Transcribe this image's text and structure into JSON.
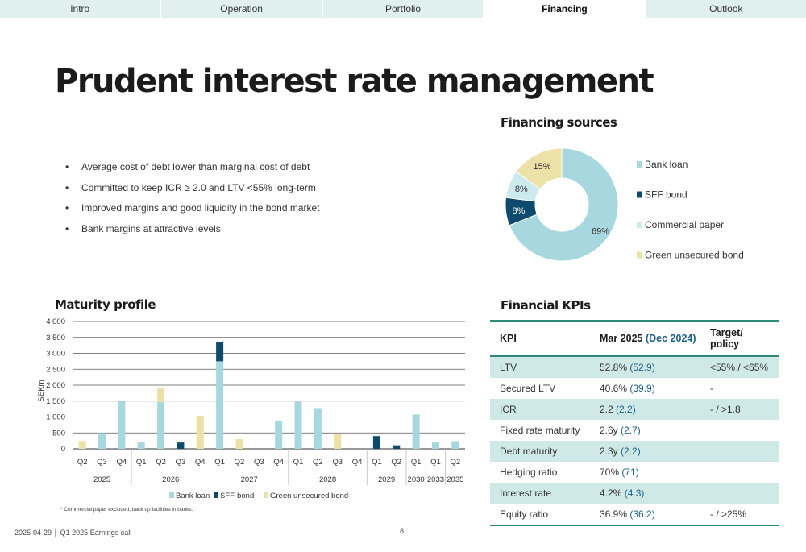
{
  "tabs": [
    "Intro",
    "Operation",
    "Portfolio",
    "Financing",
    "Outlook"
  ],
  "active_tab": 3,
  "title": "Prudent interest rate management",
  "bullets": [
    "Average cost of debt lower than marginal cost of debt",
    "Committed to keep ICR ≥ 2.0 and LTV <55% long-term",
    "Improved margins and good liquidity in the bond market",
    "Bank margins at attractive levels"
  ],
  "colors": {
    "bank_loan": "#a8d8df",
    "sff_bond": "#0d4a6b",
    "commercial_paper": "#cdeaee",
    "green_bond": "#ece2a8",
    "accent": "#2d8a7a"
  },
  "donut": {
    "title": "Financing sources",
    "chart_data": {
      "type": "pie",
      "labels": [
        "Bank loan",
        "SFF bond",
        "Commercial paper",
        "Green unsecured bond"
      ],
      "values": [
        69,
        8,
        8,
        15
      ],
      "value_labels": [
        "69%",
        "8%",
        "8%",
        "15%"
      ]
    }
  },
  "maturity": {
    "title": "Maturity profile",
    "chart_data": {
      "type": "bar",
      "stacked": true,
      "ylabel": "SEKm",
      "ylim": [
        0,
        4000
      ],
      "yticks": [
        "0",
        "500",
        "1 000",
        "1 500",
        "2 000",
        "2 500",
        "3 000",
        "3 500",
        "4 000"
      ],
      "categories": [
        "Q2",
        "Q3",
        "Q4",
        "Q1",
        "Q2",
        "Q3",
        "Q4",
        "Q1",
        "Q2",
        "Q3",
        "Q4",
        "Q1",
        "Q2",
        "Q3",
        "Q4",
        "Q1",
        "Q2",
        "Q1",
        "Q1",
        "Q2"
      ],
      "series": [
        {
          "name": "Bank loan",
          "values": [
            0,
            500,
            1500,
            200,
            1470,
            0,
            0,
            2750,
            0,
            0,
            890,
            1480,
            1280,
            0,
            0,
            0,
            0,
            1080,
            200,
            240
          ]
        },
        {
          "name": "SFF-bond",
          "values": [
            0,
            0,
            0,
            0,
            0,
            200,
            0,
            600,
            0,
            0,
            0,
            0,
            0,
            0,
            0,
            400,
            110,
            0,
            0,
            0
          ]
        },
        {
          "name": "Green unsecured bond",
          "values": [
            250,
            0,
            0,
            0,
            430,
            0,
            1040,
            0,
            300,
            0,
            0,
            0,
            0,
            490,
            0,
            0,
            0,
            0,
            0,
            0
          ]
        }
      ],
      "year_groups": [
        {
          "label": "2025",
          "start": 0,
          "end": 2
        },
        {
          "label": "2026",
          "start": 3,
          "end": 6
        },
        {
          "label": "2027",
          "start": 7,
          "end": 10
        },
        {
          "label": "2028",
          "start": 11,
          "end": 14
        },
        {
          "label": "2029",
          "start": 15,
          "end": 16
        },
        {
          "label": "2030",
          "start": 17,
          "end": 17
        },
        {
          "label": "2033",
          "start": 18,
          "end": 18
        },
        {
          "label": "2035",
          "start": 19,
          "end": 19
        }
      ]
    },
    "footnote": "* Commercial paper excluded, back up facilities in banks."
  },
  "kpis": {
    "title": "Financial KPIs",
    "headers": {
      "kpi": "KPI",
      "mar_prefix": "Mar 2025 ",
      "mar_dec": "(Dec 2024)",
      "target_line1": "Target/",
      "target_line2": "policy"
    },
    "rows": [
      {
        "name": "LTV",
        "value": "52.8%",
        "prev": "(52.9)",
        "target": "<55% / <65%"
      },
      {
        "name": "Secured LTV",
        "value": "40.6%",
        "prev": "(39.9)",
        "target": "-"
      },
      {
        "name": "ICR",
        "value": "2.2",
        "prev": "(2.2)",
        "target": "- / >1.8"
      },
      {
        "name": "Fixed rate maturity",
        "value": "2.6y",
        "prev": "(2.7)",
        "target": ""
      },
      {
        "name": "Debt maturity",
        "value": "2.3y",
        "prev": "(2.2)",
        "target": ""
      },
      {
        "name": "Hedging ratio",
        "value": "70%",
        "prev": "(71)",
        "target": ""
      },
      {
        "name": "Interest rate",
        "value": "4.2%",
        "prev": "(4.3)",
        "target": ""
      },
      {
        "name": "Equity ratio",
        "value": "36.9%",
        "prev": "(36.2)",
        "target": "- / >25%"
      }
    ]
  },
  "footer": {
    "left": "2025-04-29  │ Q1 2025 Earnings call",
    "page": "8"
  }
}
